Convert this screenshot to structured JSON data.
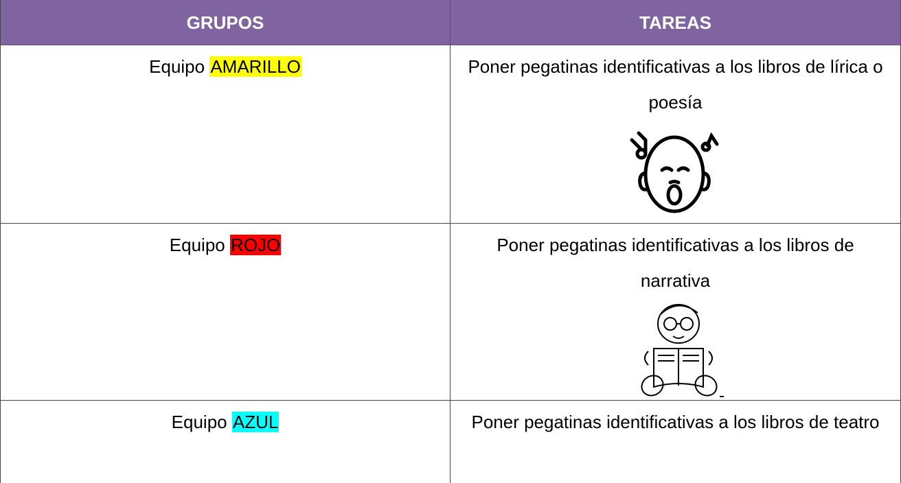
{
  "table": {
    "header": [
      "GRUPOS",
      "TAREAS"
    ],
    "rows": [
      {
        "group": {
          "prefix": "Equipo",
          "name": "AMARILLO",
          "highlight": "#ffff00"
        },
        "task": "Poner pegatinas identificativas a los libros de lírica o poesía"
      },
      {
        "group": {
          "prefix": "Equipo",
          "name": "ROJO",
          "highlight": "#ff0000"
        },
        "task": "Poner pegatinas identificativas a los libros de narrativa"
      },
      {
        "group": {
          "prefix": "Equipo",
          "name": "AZUL",
          "highlight": "#00ffff"
        },
        "task": "Poner pegatinas identificativas a los libros de teatro"
      }
    ]
  }
}
